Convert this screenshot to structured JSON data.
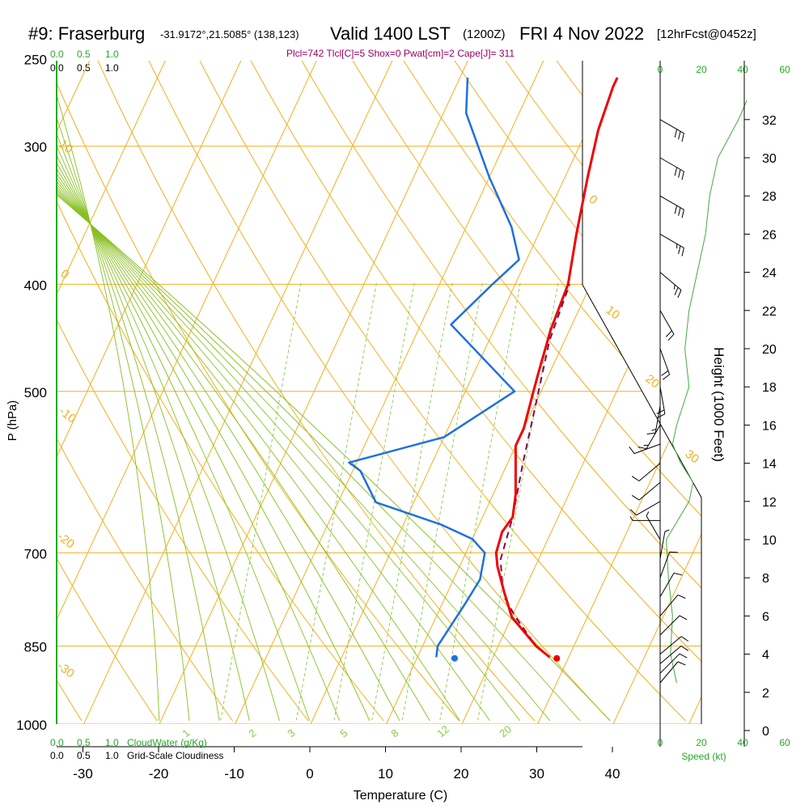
{
  "header": {
    "station": "#9: Fraserburg",
    "coords": "-31.9172°,21.5085° (138,123)",
    "valid": "Valid 1400 LST",
    "utc": "(1200Z)",
    "date": "FRI 4 Nov 2022",
    "forecast": "[12hrFcst@0452z]",
    "indices": "Plcl=742 Tlcl[C]=5 Shox=0 Pwat[cm]=2 Cape[J]= 311"
  },
  "colors": {
    "temperature": "#ee0000",
    "dewpoint": "#1f6fe0",
    "parcel": "#7a0a5a",
    "isobar_isotherm": "#f0b020",
    "dry_adiabat": "#f0b020",
    "moist_adiabat": "#88c020",
    "mixing_ratio": "#88cc44",
    "height_profile": "#44aa44",
    "wind_barbs": "#000000",
    "indices_text": "#990066",
    "scale_green": "#22aa22"
  },
  "chart_data": {
    "type": "skewt",
    "xlabel": "Temperature (C)",
    "ylabel": "P (hPa)",
    "right_label": "Height (1000 Feet)",
    "x_ticks": [
      -30,
      -20,
      -10,
      0,
      10,
      20,
      30,
      40
    ],
    "x_range": [
      -38,
      52
    ],
    "y_ticks_hpa": [
      250,
      300,
      400,
      500,
      700,
      850,
      1000
    ],
    "y_range_hpa": [
      250,
      1000
    ],
    "height_ticks_kft": [
      0,
      2,
      4,
      6,
      8,
      10,
      12,
      14,
      16,
      18,
      20,
      22,
      24,
      26,
      28,
      30,
      32
    ],
    "dry_adiabat_labels": [
      "10",
      "0",
      "-10",
      "-20",
      "-30",
      "0",
      "10",
      "20",
      "30"
    ],
    "mixing_ratio_labels": [
      "1",
      "2",
      "3",
      "5",
      "8",
      "12",
      "20"
    ],
    "temperature": {
      "name": "Temperature",
      "points": [
        [
          27.5,
          870
        ],
        [
          25,
          850
        ],
        [
          20,
          800
        ],
        [
          17.5,
          760
        ],
        [
          15,
          720
        ],
        [
          14,
          700
        ],
        [
          13.5,
          670
        ],
        [
          14,
          650
        ],
        [
          13,
          620
        ],
        [
          10,
          560
        ],
        [
          10,
          540
        ],
        [
          9,
          500
        ],
        [
          8.5,
          480
        ],
        [
          7.5,
          440
        ],
        [
          7,
          400
        ],
        [
          5,
          360
        ],
        [
          3,
          320
        ],
        [
          1.5,
          290
        ],
        [
          0.8,
          265
        ],
        [
          0.8,
          260
        ]
      ]
    },
    "dewpoint": {
      "name": "Dewpoint",
      "points": [
        [
          12.5,
          870
        ],
        [
          12,
          850
        ],
        [
          13,
          780
        ],
        [
          13.5,
          740
        ],
        [
          12.5,
          700
        ],
        [
          10,
          680
        ],
        [
          5,
          660
        ],
        [
          -5,
          630
        ],
        [
          -9,
          590
        ],
        [
          -11,
          580
        ],
        [
          0,
          550
        ],
        [
          6.5,
          500
        ],
        [
          -6,
          435
        ],
        [
          -3,
          400
        ],
        [
          -1,
          380
        ],
        [
          -4,
          355
        ],
        [
          -10,
          320
        ],
        [
          -17,
          280
        ],
        [
          -19,
          260
        ]
      ]
    },
    "parcel": {
      "name": "Parcel",
      "points": [
        [
          27.5,
          870
        ],
        [
          25,
          850
        ],
        [
          20.5,
          800
        ],
        [
          18,
          770
        ],
        [
          16.5,
          742
        ],
        [
          15,
          710
        ],
        [
          14,
          650
        ],
        [
          12,
          580
        ],
        [
          10,
          510
        ],
        [
          8,
          450
        ],
        [
          7.2,
          400
        ]
      ]
    },
    "surface_temperature": 28.5,
    "surface_dewpoint": 15,
    "surface_pressure": 872,
    "wind_kt": [
      {
        "kft": 2.5,
        "speed": 10,
        "dir": 320
      },
      {
        "kft": 3,
        "speed": 10,
        "dir": 315
      },
      {
        "kft": 3.5,
        "speed": 10,
        "dir": 310
      },
      {
        "kft": 4,
        "speed": 10,
        "dir": 310
      },
      {
        "kft": 5,
        "speed": 10,
        "dir": 315
      },
      {
        "kft": 6,
        "speed": 10,
        "dir": 320
      },
      {
        "kft": 7,
        "speed": 10,
        "dir": 330
      },
      {
        "kft": 8,
        "speed": 10,
        "dir": 340
      },
      {
        "kft": 9,
        "speed": 5,
        "dir": 350
      },
      {
        "kft": 10,
        "speed": 5,
        "dir": 30
      },
      {
        "kft": 11,
        "speed": 5,
        "dir": 90
      },
      {
        "kft": 12,
        "speed": 10,
        "dir": 120
      },
      {
        "kft": 13,
        "speed": 10,
        "dir": 130
      },
      {
        "kft": 14,
        "speed": 10,
        "dir": 130
      },
      {
        "kft": 15,
        "speed": 10,
        "dir": 110
      },
      {
        "kft": 16,
        "speed": 15,
        "dir": 150
      },
      {
        "kft": 17,
        "speed": 15,
        "dir": 170
      },
      {
        "kft": 18,
        "speed": 20,
        "dir": 190
      },
      {
        "kft": 20,
        "speed": 20,
        "dir": 200
      },
      {
        "kft": 22,
        "speed": 20,
        "dir": 210
      },
      {
        "kft": 24,
        "speed": 25,
        "dir": 230
      },
      {
        "kft": 26,
        "speed": 25,
        "dir": 240
      },
      {
        "kft": 28,
        "speed": 30,
        "dir": 240
      },
      {
        "kft": 30,
        "speed": 30,
        "dir": 240
      },
      {
        "kft": 32,
        "speed": 30,
        "dir": 240
      }
    ],
    "wind_speed_profile": [
      [
        2.5,
        8
      ],
      [
        4,
        5
      ],
      [
        6,
        6
      ],
      [
        8,
        4
      ],
      [
        10,
        3
      ],
      [
        12,
        14
      ],
      [
        13,
        16
      ],
      [
        14,
        10
      ],
      [
        15,
        6
      ],
      [
        16,
        8
      ],
      [
        18,
        14
      ],
      [
        20,
        12
      ],
      [
        22,
        14
      ],
      [
        24,
        18
      ],
      [
        26,
        22
      ],
      [
        28,
        24
      ],
      [
        30,
        28
      ],
      [
        32,
        38
      ],
      [
        33,
        42
      ]
    ]
  },
  "scales": {
    "top_left_cloudwater": [
      "0.0",
      "0.5",
      "1.0"
    ],
    "top_left_cloudiness": [
      "0.0",
      "0.5",
      "1.0"
    ],
    "bottom_left_cloudwater": [
      "0.0",
      "0.5",
      "1.0"
    ],
    "bottom_left_cloudiness": [
      "0.0",
      "0.5",
      "1.0"
    ],
    "cloudwater_label": "CloudWater (g/Kg)",
    "cloudiness_label": "Grid-Scale Cloudiness",
    "speed_ticks_black": [
      "0",
      "20",
      "40"
    ],
    "speed_ticks_green": [
      "0",
      "20",
      "40",
      "60"
    ],
    "speed_label": "Speed (kt)"
  }
}
